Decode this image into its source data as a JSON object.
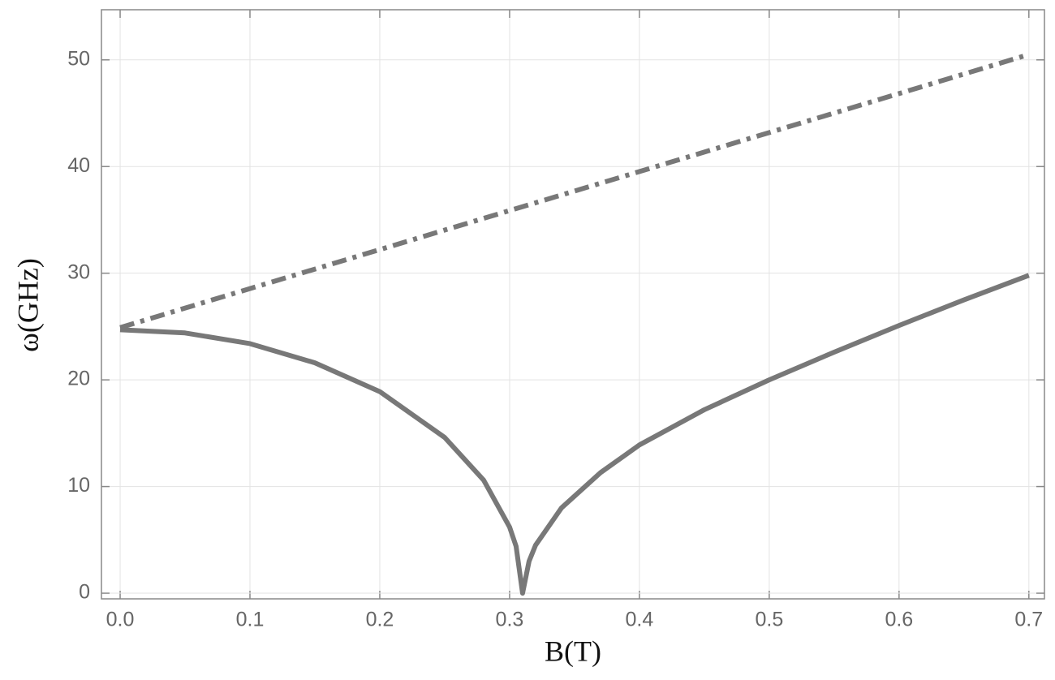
{
  "chart_data": {
    "type": "line",
    "x_label": "B(T)",
    "y_label": "ω(GHz)",
    "xlim": [
      -0.0144,
      0.712
    ],
    "ylim": [
      -0.53,
      54.7
    ],
    "xticks": [
      {
        "value": 0,
        "label": "0.0"
      },
      0.1,
      0.2,
      0.3,
      0.4,
      0.5,
      0.6,
      0.7
    ],
    "yticks": [
      0,
      10,
      20,
      30,
      40,
      50
    ],
    "grid": true,
    "series": [
      {
        "color": "#787878",
        "style": "solid",
        "x": [
          0,
          0.05,
          0.1,
          0.15,
          0.2,
          0.25,
          0.28,
          0.3,
          0.305,
          0.31,
          0.315,
          0.32,
          0.34,
          0.37,
          0.4,
          0.45,
          0.5,
          0.55,
          0.6,
          0.65,
          0.7
        ],
        "values": [
          24.7,
          24.4,
          23.4,
          21.6,
          18.9,
          14.6,
          10.6,
          6.2,
          4.4,
          0,
          3,
          4.5,
          8,
          11.3,
          13.9,
          17.2,
          20.0,
          22.6,
          25.1,
          27.5,
          29.8
        ]
      },
      {
        "color": "#787878",
        "style": "dashdot",
        "x": [
          0,
          0.7
        ],
        "values": [
          24.9,
          50.5
        ]
      }
    ]
  }
}
